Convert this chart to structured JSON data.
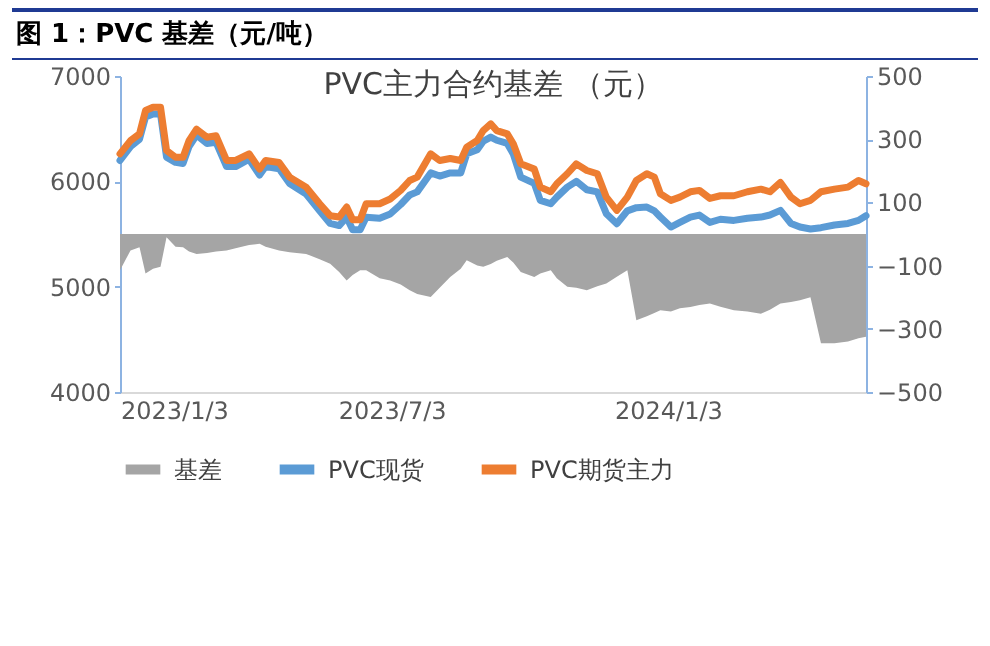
{
  "chart_data": {
    "type": "line",
    "title": "图 1：PVC 基差（元/吨）",
    "subtitle": "PVC主力合约基差 （元）",
    "x": [
      "2023-01-03",
      "2023-01-10",
      "2023-01-16",
      "2023-01-20",
      "2023-01-25",
      "2023-01-30",
      "2023-02-03",
      "2023-02-09",
      "2023-02-14",
      "2023-02-18",
      "2023-02-23",
      "2023-03-02",
      "2023-03-08",
      "2023-03-15",
      "2023-03-21",
      "2023-03-30",
      "2023-04-06",
      "2023-04-10",
      "2023-04-19",
      "2023-04-26",
      "2023-05-07",
      "2023-05-16",
      "2023-05-23",
      "2023-05-29",
      "2023-06-03",
      "2023-06-07",
      "2023-06-12",
      "2023-06-16",
      "2023-06-25",
      "2023-07-02",
      "2023-07-09",
      "2023-07-15",
      "2023-07-20",
      "2023-07-29",
      "2023-08-04",
      "2023-08-11",
      "2023-08-18",
      "2023-08-22",
      "2023-08-29",
      "2023-09-02",
      "2023-09-07",
      "2023-09-11",
      "2023-09-18",
      "2023-09-22",
      "2023-09-27",
      "2023-10-06",
      "2023-10-10",
      "2023-10-17",
      "2023-10-21",
      "2023-10-28",
      "2023-11-03",
      "2023-11-10",
      "2023-11-17",
      "2023-11-23",
      "2023-11-30",
      "2023-12-07",
      "2023-12-13",
      "2023-12-20",
      "2023-12-25",
      "2023-12-29",
      "2024-01-05",
      "2024-01-11",
      "2024-01-18",
      "2024-01-24",
      "2024-01-31",
      "2024-02-07",
      "2024-02-16",
      "2024-02-25",
      "2024-03-05",
      "2024-03-11",
      "2024-03-18",
      "2024-03-25",
      "2024-03-31",
      "2024-04-07",
      "2024-04-14",
      "2024-04-23",
      "2024-05-02",
      "2024-05-09",
      "2024-05-14"
    ],
    "series": [
      {
        "name": "基差",
        "type": "area",
        "axis": "y2",
        "color": "#a5a5a5",
        "values": [
          -115,
          -52,
          -42,
          -125,
          -110,
          -104,
          -10,
          -40,
          -42,
          -55,
          -63,
          -60,
          -55,
          -52,
          -45,
          -35,
          -31,
          -40,
          -52,
          -58,
          -63,
          -80,
          -94,
          -120,
          -147,
          -130,
          -115,
          -115,
          -140,
          -147,
          -160,
          -178,
          -190,
          -199,
          -170,
          -136,
          -110,
          -83,
          -100,
          -104,
          -95,
          -85,
          -73,
          -90,
          -120,
          -136,
          -125,
          -115,
          -140,
          -167,
          -170,
          -178,
          -165,
          -157,
          -135,
          -115,
          -273,
          -260,
          -250,
          -241,
          -245,
          -235,
          -231,
          -225,
          -220,
          -230,
          -241,
          -245,
          -252,
          -240,
          -220,
          -215,
          -210,
          -200,
          -346,
          -346,
          -340,
          -330,
          -325
        ]
      },
      {
        "name": "PVC现货",
        "color": "#5b9bd5",
        "values": [
          6198,
          6330,
          6400,
          6610,
          6640,
          6640,
          6230,
          6180,
          6170,
          6330,
          6440,
          6360,
          6370,
          6140,
          6140,
          6210,
          6060,
          6140,
          6120,
          5980,
          5880,
          5720,
          5600,
          5580,
          5660,
          5540,
          5540,
          5660,
          5650,
          5690,
          5780,
          5870,
          5900,
          6080,
          6050,
          6080,
          6080,
          6261,
          6300,
          6380,
          6420,
          6390,
          6360,
          6260,
          6040,
          5980,
          5819,
          5787,
          5850,
          5945,
          6000,
          5920,
          5900,
          5693,
          5598,
          5720,
          5750,
          5756,
          5720,
          5661,
          5566,
          5610,
          5660,
          5680,
          5610,
          5640,
          5629,
          5650,
          5661,
          5680,
          5724,
          5600,
          5566,
          5547,
          5560,
          5585,
          5600,
          5629,
          5674
        ]
      },
      {
        "name": "PVC期货主力",
        "color": "#ed7d31",
        "values": [
          6261,
          6387,
          6450,
          6672,
          6703,
          6703,
          6293,
          6229,
          6229,
          6387,
          6495,
          6419,
          6432,
          6198,
          6198,
          6261,
          6116,
          6198,
          6179,
          6040,
          5945,
          5787,
          5674,
          5661,
          5756,
          5636,
          5636,
          5787,
          5787,
          5832,
          5914,
          6008,
          6040,
          6261,
          6198,
          6217,
          6198,
          6324,
          6387,
          6482,
          6545,
          6482,
          6450,
          6356,
          6166,
          6116,
          5945,
          5901,
          5977,
          6072,
          6166,
          6103,
          6072,
          5850,
          5724,
          5850,
          6008,
          6072,
          6040,
          5882,
          5819,
          5850,
          5901,
          5914,
          5838,
          5863,
          5863,
          5901,
          5926,
          5901,
          5989,
          5850,
          5787,
          5819,
          5901,
          5926,
          5945,
          6008,
          5977
        ]
      }
    ],
    "xlim": [
      "2023-01-03",
      "2024-05-14"
    ],
    "xticks": [
      {
        "value": "2023-01-03",
        "label": "2023/1/3"
      },
      {
        "value": "2023-07-03",
        "label": "2023/7/3"
      },
      {
        "value": "2024-01-03",
        "label": "2024/1/3"
      }
    ],
    "ylim": [
      4000,
      7000
    ],
    "yticks": [
      4000,
      5000,
      6000,
      7000
    ],
    "y2lim": [
      -500,
      500
    ],
    "y2ticks": [
      -500,
      -300,
      -100,
      100,
      300,
      500
    ],
    "grid": false,
    "legend": "bottom"
  }
}
